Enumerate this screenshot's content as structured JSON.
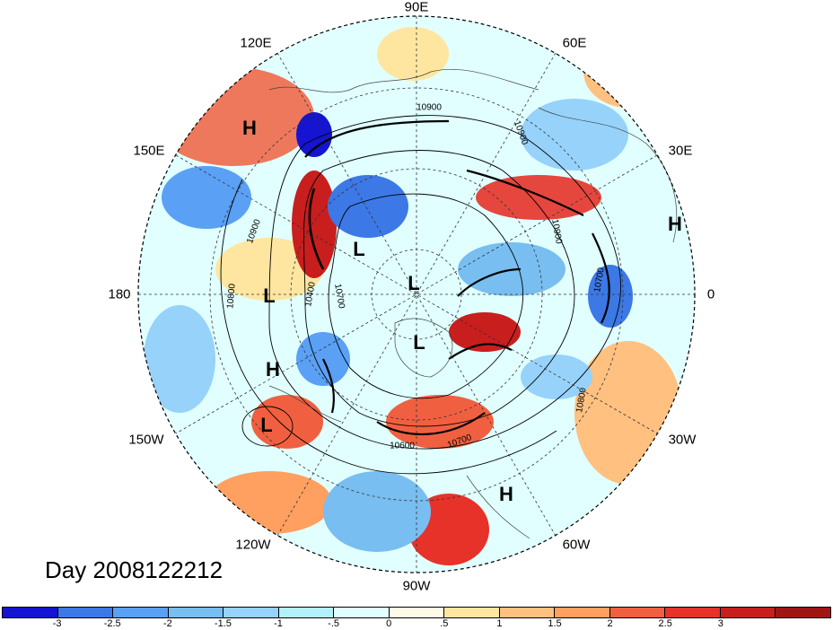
{
  "map": {
    "projection": "north polar stereographic",
    "longitude_labels": [
      "90E",
      "60E",
      "30E",
      "0",
      "30W",
      "60W",
      "90W",
      "120W",
      "150W",
      "180",
      "150E",
      "120E"
    ],
    "highs_lows": [
      "H",
      "H",
      "L",
      "L",
      "L",
      "L",
      "H",
      "L",
      "H"
    ],
    "contour_labels": [
      "10900",
      "10900",
      "10900",
      "10900",
      "10800",
      "10400",
      "10700",
      "10700",
      "10600",
      "10800",
      "10700"
    ]
  },
  "title": "Day 2008122212",
  "colorbar": {
    "colors": [
      "#1414d2",
      "#3c78e6",
      "#5aa0f5",
      "#78bef0",
      "#96d2fa",
      "#b4f0fa",
      "#e1ffff",
      "#fffae6",
      "#ffe6a0",
      "#ffc080",
      "#ffa060",
      "#f06040",
      "#e63228",
      "#c81e1e",
      "#a01414"
    ],
    "tick_labels": [
      "-3",
      "-2.5",
      "-2",
      "-1.5",
      "-1",
      "-.5",
      "0",
      ".5",
      "1",
      "1.5",
      "2",
      "2.5",
      "3"
    ]
  }
}
